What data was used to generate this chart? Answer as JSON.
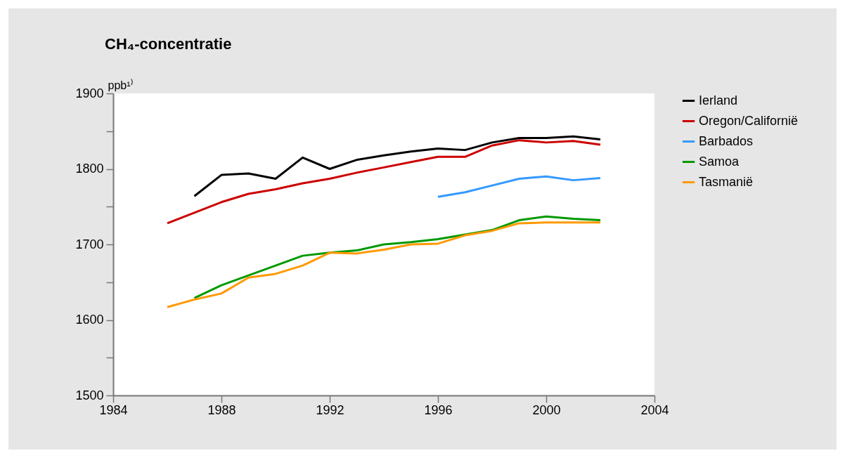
{
  "chart_data": {
    "type": "line",
    "title": "CH₄-concentratie",
    "ylabel": "ppb¹⁾",
    "x": [
      1986,
      1987,
      1988,
      1989,
      1990,
      1991,
      1992,
      1993,
      1994,
      1995,
      1996,
      1997,
      1998,
      1999,
      2000,
      2001,
      2002
    ],
    "series": [
      {
        "name": "Ierland",
        "color": "#000000",
        "values": [
          null,
          1764,
          1792,
          1794,
          1787,
          1815,
          1800,
          1812,
          1818,
          1823,
          1827,
          1825,
          1835,
          1841,
          1841,
          1843,
          1839
        ]
      },
      {
        "name": "Oregon/Californië",
        "color": "#cc0000",
        "values": [
          1728,
          1742,
          1756,
          1767,
          1773,
          1781,
          1787,
          1795,
          1802,
          1809,
          1816,
          1816,
          1831,
          1838,
          1835,
          1837,
          1832
        ]
      },
      {
        "name": "Barbados",
        "color": "#3399ff",
        "values": [
          null,
          null,
          null,
          null,
          null,
          null,
          null,
          null,
          null,
          null,
          1763,
          1769,
          1778,
          1787,
          1790,
          1785,
          1788
        ]
      },
      {
        "name": "Samoa",
        "color": "#009900",
        "values": [
          null,
          1629,
          1646,
          1659,
          1672,
          1685,
          1689,
          1692,
          1700,
          1703,
          1707,
          1713,
          1719,
          1732,
          1737,
          1734,
          1732
        ]
      },
      {
        "name": "Tasmanië",
        "color": "#ff9900",
        "values": [
          1617,
          1627,
          1635,
          1656,
          1661,
          1672,
          1689,
          1688,
          1693,
          1700,
          1701,
          1712,
          1718,
          1728,
          1729,
          1729,
          1729
        ]
      }
    ],
    "xlim": [
      1984,
      2004
    ],
    "xticks": [
      1984,
      1988,
      1992,
      1996,
      2000,
      2004
    ],
    "ylim": [
      1500,
      1900
    ],
    "yticks": [
      1500,
      {
        "value": 1550,
        "label": null
      },
      1600,
      {
        "value": 1650,
        "label": null
      },
      1700,
      {
        "value": 1750,
        "label": null
      },
      1800,
      {
        "value": 1850,
        "label": null
      },
      1900
    ],
    "grid": false,
    "legend": "right",
    "marker": "none",
    "line_style": "solid"
  }
}
